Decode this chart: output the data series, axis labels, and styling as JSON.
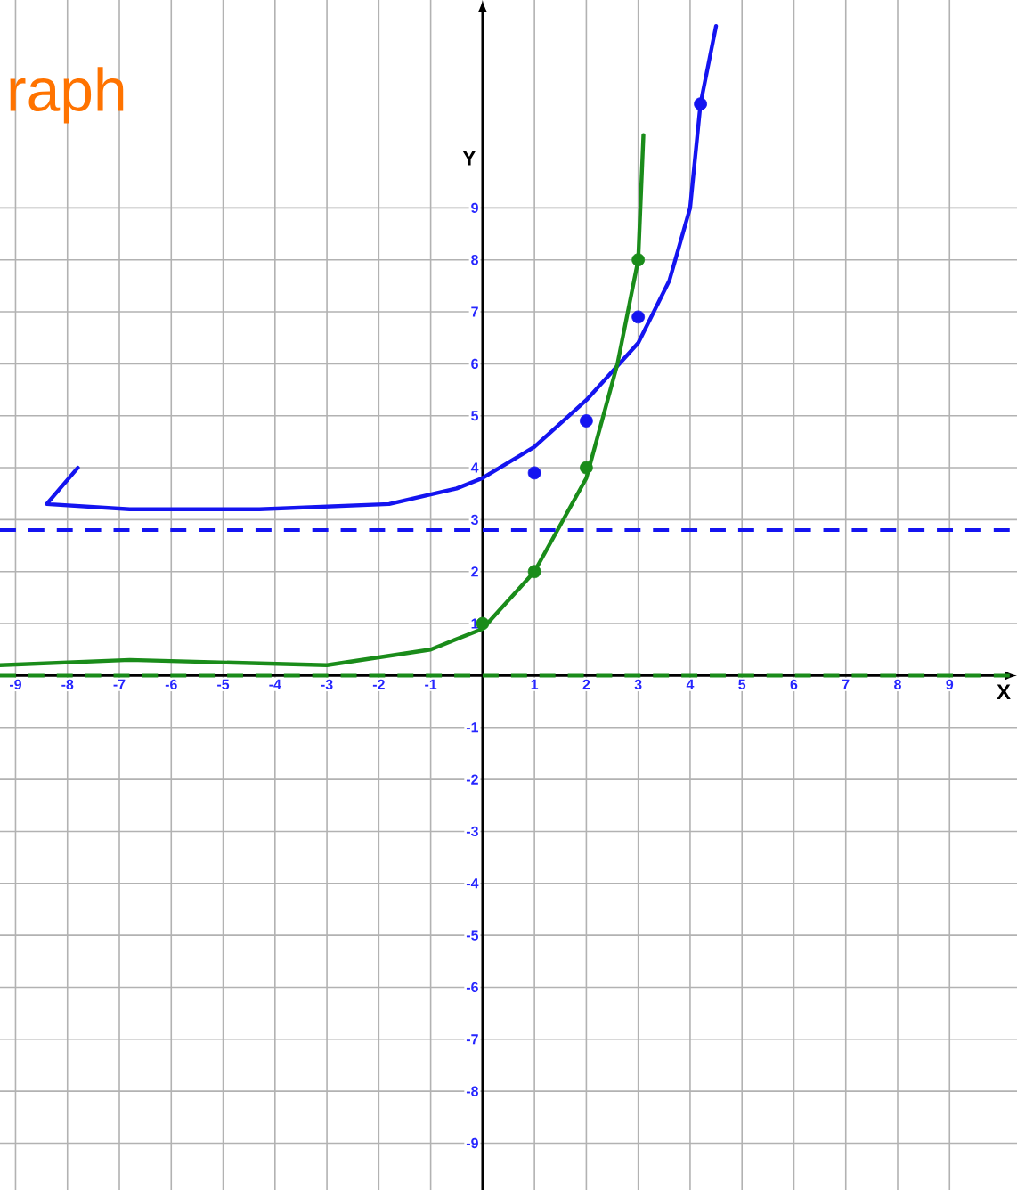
{
  "chart_data": {
    "type": "line",
    "title": "raph",
    "xlabel": "X",
    "ylabel": "Y",
    "xlim": [
      -9.3,
      10.3
    ],
    "ylim": [
      -9.9,
      13
    ],
    "xticks": [
      -9,
      -8,
      -7,
      -6,
      -5,
      -4,
      -3,
      -2,
      -1,
      1,
      2,
      3,
      4,
      5,
      6,
      7,
      8,
      9
    ],
    "yticks": [
      -9,
      -8,
      -7,
      -6,
      -5,
      -4,
      -3,
      -2,
      -1,
      1,
      2,
      3,
      4,
      5,
      6,
      7,
      8,
      9
    ],
    "grid": true,
    "series": [
      {
        "color": "#1414f0",
        "x": [
          -7.8,
          -8.4,
          -6.8,
          -4.3,
          -1.8,
          -0.5,
          0,
          1,
          2,
          3,
          3.6,
          4,
          4.2,
          4.5
        ],
        "values": [
          4.0,
          3.3,
          3.2,
          3.2,
          3.3,
          3.6,
          3.8,
          4.4,
          5.3,
          6.4,
          7.6,
          9.0,
          11,
          12.5
        ]
      },
      {
        "color": "#1a8c1a",
        "x": [
          -9.3,
          -6.8,
          -3,
          -1,
          0,
          1,
          2,
          2.6,
          3,
          3.1
        ],
        "values": [
          0.2,
          0.3,
          0.2,
          0.5,
          0.9,
          2,
          3.8,
          6,
          8,
          10.4
        ]
      },
      {
        "type": "scatter",
        "color": "#1414f0",
        "x": [
          1,
          2,
          3,
          4.2
        ],
        "values": [
          3.9,
          4.9,
          6.9,
          11
        ]
      },
      {
        "type": "scatter",
        "color": "#1a8c1a",
        "x": [
          0,
          1,
          2,
          3
        ],
        "values": [
          1,
          2,
          4,
          8
        ]
      }
    ],
    "ref_lines": [
      {
        "axis": "y",
        "value": 2.8,
        "color": "#1414f0",
        "line_style": "dashed"
      },
      {
        "axis": "y",
        "value": 0,
        "color": "#1a8c1a",
        "line_style": "dashed"
      }
    ]
  }
}
